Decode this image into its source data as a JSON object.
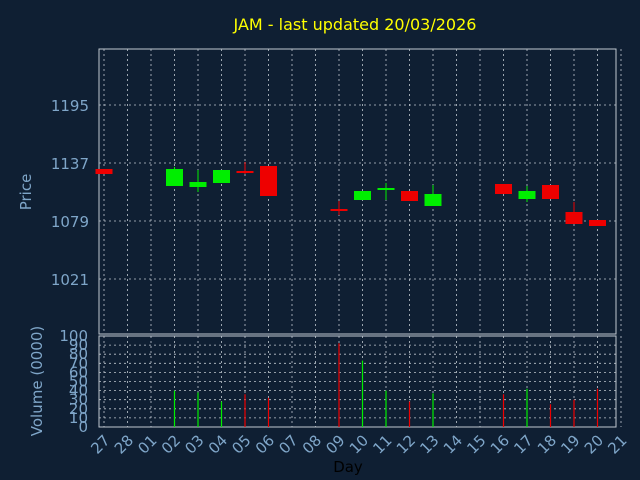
{
  "chart_data": [
    {
      "type": "candlestick",
      "title": "JAM - last updated 20/03/2026",
      "ylabel": "Price",
      "yticks": [
        1021,
        1079,
        1137,
        1195
      ],
      "grid": true,
      "colors": {
        "up": "#00ee00",
        "down": "#ee0000",
        "title": "#ffff00",
        "axis_text": "#7fa6c9",
        "grid": "#c0c8d0",
        "frame": "#c0c8d0",
        "background": "#0f1f33"
      },
      "candles": [
        {
          "x": "27",
          "open": 1131,
          "high": 1131,
          "low": 1126,
          "close": 1126
        },
        {
          "x": "02",
          "open": 1114,
          "high": 1133,
          "low": 1114,
          "close": 1131
        },
        {
          "x": "03",
          "open": 1113,
          "high": 1130,
          "low": 1108,
          "close": 1118
        },
        {
          "x": "04",
          "open": 1117,
          "high": 1130,
          "low": 1117,
          "close": 1130
        },
        {
          "x": "05",
          "open": 1129,
          "high": 1138,
          "low": 1126,
          "close": 1127
        },
        {
          "x": "06",
          "open": 1134,
          "high": 1134,
          "low": 1104,
          "close": 1104
        },
        {
          "x": "09",
          "open": 1091,
          "high": 1099,
          "low": 1085,
          "close": 1089
        },
        {
          "x": "10",
          "open": 1100,
          "high": 1109,
          "low": 1100,
          "close": 1109
        },
        {
          "x": "11",
          "open": 1110,
          "high": 1117,
          "low": 1100,
          "close": 1112
        },
        {
          "x": "12",
          "open": 1109,
          "high": 1109,
          "low": 1099,
          "close": 1099
        },
        {
          "x": "13",
          "open": 1094,
          "high": 1115,
          "low": 1094,
          "close": 1106
        },
        {
          "x": "16",
          "open": 1116,
          "high": 1116,
          "low": 1106,
          "close": 1106
        },
        {
          "x": "17",
          "open": 1101,
          "high": 1114,
          "low": 1098,
          "close": 1109
        },
        {
          "x": "18",
          "open": 1115,
          "high": 1115,
          "low": 1101,
          "close": 1101
        },
        {
          "x": "19",
          "open": 1088,
          "high": 1098,
          "low": 1076,
          "close": 1076
        },
        {
          "x": "20",
          "open": 1080,
          "high": 1080,
          "low": 1074,
          "close": 1074
        }
      ]
    },
    {
      "type": "bar",
      "xlabel": "Day",
      "ylabel": "Volume (0000)",
      "ylim": [
        0,
        100
      ],
      "yticks": [
        0,
        10,
        20,
        30,
        40,
        50,
        60,
        70,
        80,
        90,
        100
      ],
      "categories": [
        "27",
        "28",
        "01",
        "02",
        "03",
        "04",
        "05",
        "06",
        "07",
        "08",
        "09",
        "10",
        "11",
        "12",
        "13",
        "14",
        "15",
        "16",
        "17",
        "18",
        "19",
        "20",
        "21"
      ],
      "bars": [
        {
          "x": "02",
          "value": 40,
          "dir": "up"
        },
        {
          "x": "03",
          "value": 38,
          "dir": "up"
        },
        {
          "x": "04",
          "value": 28,
          "dir": "up"
        },
        {
          "x": "05",
          "value": 36,
          "dir": "down"
        },
        {
          "x": "06",
          "value": 32,
          "dir": "down"
        },
        {
          "x": "09",
          "value": 92,
          "dir": "down"
        },
        {
          "x": "10",
          "value": 73,
          "dir": "up"
        },
        {
          "x": "11",
          "value": 40,
          "dir": "up"
        },
        {
          "x": "12",
          "value": 28,
          "dir": "down"
        },
        {
          "x": "13",
          "value": 37,
          "dir": "up"
        },
        {
          "x": "16",
          "value": 36,
          "dir": "down"
        },
        {
          "x": "17",
          "value": 42,
          "dir": "up"
        },
        {
          "x": "18",
          "value": 25,
          "dir": "down"
        },
        {
          "x": "19",
          "value": 30,
          "dir": "down"
        },
        {
          "x": "20",
          "value": 42,
          "dir": "down"
        }
      ]
    }
  ]
}
